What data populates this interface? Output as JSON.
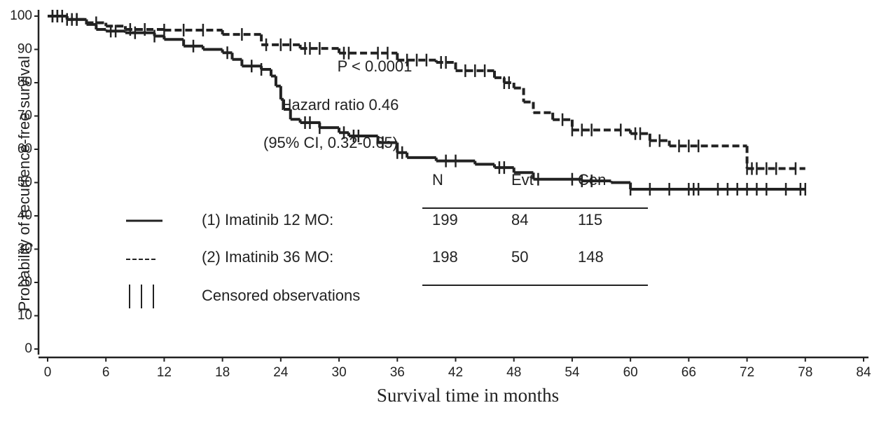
{
  "chart_data": {
    "type": "kaplan-meier",
    "x_label": "Survival time in months",
    "y_label": "Probability of recurrence-free survival",
    "xlim": [
      0,
      84
    ],
    "xticks": [
      0,
      6,
      12,
      18,
      24,
      30,
      36,
      42,
      48,
      54,
      60,
      66,
      72,
      78,
      84
    ],
    "ylim": [
      0,
      100
    ],
    "yticks": [
      0,
      10,
      20,
      30,
      40,
      50,
      60,
      70,
      80,
      90,
      100
    ],
    "annotations": [
      "P < 0.0001",
      "Hazard ratio 0.46",
      "(95% CI, 0.32-0.65)"
    ],
    "table_headers": [
      "N",
      "Evt",
      "Cen"
    ],
    "censored_label": "Censored observations",
    "series": [
      {
        "name": "(1) Imatinib 12 MO:",
        "color": "#222222",
        "dashed": false,
        "N": 199,
        "Evt": 84,
        "Cen": 115,
        "x": [
          0,
          2,
          4,
          5,
          6,
          8,
          11,
          12,
          14,
          16,
          18,
          19,
          20,
          22,
          23,
          23.5,
          24,
          24.3,
          25,
          26,
          28,
          30,
          31,
          34,
          36,
          37,
          40,
          44,
          46,
          48,
          50,
          55,
          58,
          60,
          78
        ],
        "values": [
          100,
          99,
          97.5,
          96,
          95.5,
          95,
          94,
          93,
          91,
          90,
          89,
          87,
          85,
          84,
          82,
          79,
          75,
          72,
          69,
          68,
          66.5,
          65,
          64,
          62,
          59,
          57.5,
          56.5,
          55.5,
          54.5,
          53,
          51,
          50.5,
          50,
          48,
          48
        ],
        "censored": [
          0.5,
          1,
          1.5,
          2.5,
          3,
          6.5,
          7,
          9,
          11,
          15,
          18.5,
          21,
          22,
          26.5,
          27,
          28,
          30.5,
          31.5,
          32,
          34.5,
          36,
          36.5,
          41,
          42,
          46.5,
          47,
          50.5,
          54,
          55,
          56,
          60,
          62,
          64,
          66,
          66.5,
          67,
          69,
          70,
          71,
          72,
          73,
          74,
          76,
          77.5,
          78
        ]
      },
      {
        "name": "(2) Imatinib 36 MO:",
        "color": "#222222",
        "dashed": true,
        "N": 198,
        "Evt": 50,
        "Cen": 148,
        "x": [
          0,
          2,
          4,
          6,
          8,
          12,
          18,
          22,
          26,
          30,
          36,
          40,
          42,
          46,
          47,
          48,
          49,
          50,
          52,
          54,
          60,
          62,
          64,
          72,
          78
        ],
        "values": [
          100,
          99,
          98,
          97,
          96,
          95.8,
          94.5,
          91.4,
          90.3,
          88.9,
          86.8,
          86.1,
          83.6,
          81.5,
          80,
          78.4,
          74.2,
          71,
          68.9,
          65.8,
          64.7,
          62.6,
          61,
          54.2,
          54.2
        ],
        "censored": [
          0.5,
          1,
          2,
          3,
          5,
          8.5,
          10,
          12,
          14,
          16,
          20,
          22.5,
          24,
          25,
          26.5,
          27,
          28,
          30.5,
          31,
          34,
          35,
          37,
          38,
          39,
          40.5,
          41,
          43,
          44,
          45,
          47,
          47.5,
          53,
          54,
          55,
          56,
          59,
          60.5,
          61,
          62,
          63,
          65,
          66,
          67,
          72,
          72.5,
          73,
          74,
          75,
          77
        ]
      }
    ]
  }
}
